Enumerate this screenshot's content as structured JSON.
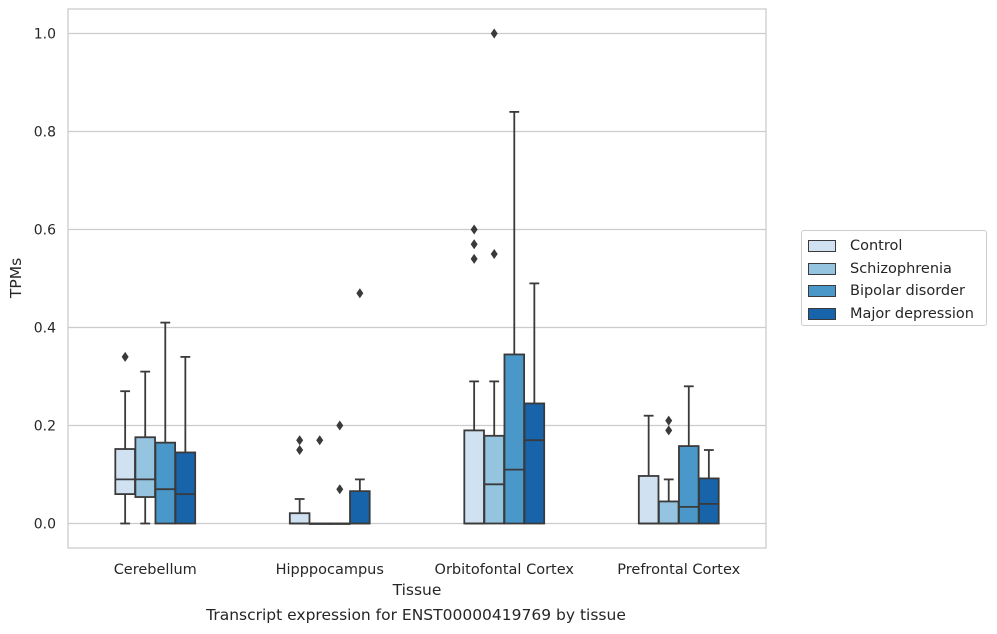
{
  "chart_data": {
    "type": "boxplot",
    "xlabel": "Tissue",
    "ylabel": "TPMs",
    "ylim": [
      -0.05,
      1.05
    ],
    "yticks": [
      0.0,
      0.2,
      0.4,
      0.6,
      0.8,
      1.0
    ],
    "ytick_labels": [
      "0.0",
      "0.2",
      "0.4",
      "0.6",
      "0.8",
      "1.0"
    ],
    "grid": "horizontal",
    "legend_position": "right",
    "categories": [
      "Cerebellum",
      "Hipppocampus",
      "Orbitofontal Cortex",
      "Prefrontal Cortex"
    ],
    "series": [
      {
        "name": "Control",
        "color": "#d0e1f2",
        "boxes": [
          {
            "q1": 0.06,
            "median": 0.09,
            "q3": 0.152,
            "whislo": 0.0,
            "whishi": 0.27,
            "fliers": [
              0.34
            ]
          },
          {
            "q1": 0.0,
            "median": 0.0,
            "q3": 0.021,
            "whislo": 0.0,
            "whishi": 0.05,
            "fliers": [
              0.15,
              0.17
            ]
          },
          {
            "q1": 0.0,
            "median": 0.0,
            "q3": 0.19,
            "whislo": 0.0,
            "whishi": 0.29,
            "fliers": [
              0.54,
              0.57,
              0.6
            ]
          },
          {
            "q1": 0.0,
            "median": 0.0,
            "q3": 0.097,
            "whislo": 0.0,
            "whishi": 0.22,
            "fliers": []
          }
        ]
      },
      {
        "name": "Schizophrenia",
        "color": "#94c4df",
        "boxes": [
          {
            "q1": 0.054,
            "median": 0.09,
            "q3": 0.176,
            "whislo": 0.0,
            "whishi": 0.31,
            "fliers": []
          },
          {
            "q1": 0.0,
            "median": 0.0,
            "q3": 0.0,
            "whislo": 0.0,
            "whishi": 0.0,
            "fliers": [
              0.17
            ]
          },
          {
            "q1": 0.0,
            "median": 0.08,
            "q3": 0.179,
            "whislo": 0.0,
            "whishi": 0.29,
            "fliers": [
              0.55,
              1.0
            ]
          },
          {
            "q1": 0.0,
            "median": 0.0,
            "q3": 0.045,
            "whislo": 0.0,
            "whishi": 0.09,
            "fliers": [
              0.19,
              0.21
            ]
          }
        ]
      },
      {
        "name": "Bipolar disorder",
        "color": "#4a98c9",
        "boxes": [
          {
            "q1": 0.0,
            "median": 0.07,
            "q3": 0.165,
            "whislo": 0.0,
            "whishi": 0.41,
            "fliers": []
          },
          {
            "q1": 0.0,
            "median": 0.0,
            "q3": 0.0,
            "whislo": 0.0,
            "whishi": 0.0,
            "fliers": [
              0.07,
              0.2
            ]
          },
          {
            "q1": 0.0,
            "median": 0.11,
            "q3": 0.345,
            "whislo": 0.0,
            "whishi": 0.84,
            "fliers": []
          },
          {
            "q1": 0.0,
            "median": 0.034,
            "q3": 0.158,
            "whislo": 0.0,
            "whishi": 0.28,
            "fliers": []
          }
        ]
      },
      {
        "name": "Major depression",
        "color": "#1764ab",
        "boxes": [
          {
            "q1": 0.0,
            "median": 0.06,
            "q3": 0.145,
            "whislo": 0.0,
            "whishi": 0.34,
            "fliers": []
          },
          {
            "q1": 0.0,
            "median": 0.0,
            "q3": 0.066,
            "whislo": 0.0,
            "whishi": 0.09,
            "fliers": [
              0.47
            ]
          },
          {
            "q1": 0.0,
            "median": 0.17,
            "q3": 0.245,
            "whislo": 0.0,
            "whishi": 0.49,
            "fliers": []
          },
          {
            "q1": 0.0,
            "median": 0.04,
            "q3": 0.092,
            "whislo": 0.0,
            "whishi": 0.15,
            "fliers": []
          }
        ]
      }
    ],
    "caption": "Transcript expression for ENST00000419769 by tissue"
  }
}
